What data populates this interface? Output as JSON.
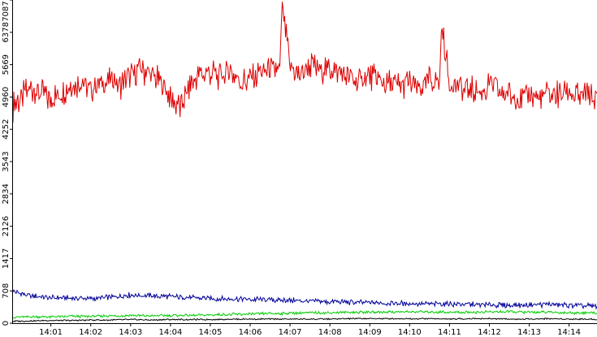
{
  "chart_data": {
    "type": "line",
    "title": "",
    "xlabel": "",
    "ylabel": "",
    "ylim": [
      0,
      7087
    ],
    "y_ticks": [
      0,
      708,
      1417,
      2126,
      2834,
      3543,
      4252,
      4960,
      5669,
      6378,
      7087
    ],
    "y_tick_labels": [
      "0",
      "708",
      "1417",
      "2126",
      "2834",
      "3543",
      "4252",
      "4960",
      "5669",
      "6378",
      "7087"
    ],
    "x_ticks": [
      1,
      2,
      3,
      4,
      5,
      6,
      7,
      8,
      9,
      10,
      11,
      12,
      13,
      14
    ],
    "x_tick_labels": [
      "14:01",
      "14:02",
      "14:03",
      "14:04",
      "14:05",
      "14:06",
      "14:07",
      "14:08",
      "14:09",
      "14:10",
      "14:11",
      "14:12",
      "14:13",
      "14:14"
    ],
    "xlim": [
      0.05,
      14.7
    ],
    "grid": false,
    "legend": "none",
    "series": [
      {
        "color": "#dd0000",
        "x": [
          0.05,
          0.25,
          0.5,
          0.75,
          1.0,
          1.25,
          1.5,
          1.75,
          2.0,
          2.25,
          2.5,
          2.75,
          3.0,
          3.25,
          3.5,
          3.75,
          4.0,
          4.25,
          4.5,
          4.75,
          5.0,
          5.25,
          5.5,
          5.75,
          6.0,
          6.25,
          6.5,
          6.75,
          6.8,
          7.0,
          7.25,
          7.5,
          7.75,
          8.0,
          8.25,
          8.5,
          8.75,
          9.0,
          9.25,
          9.5,
          9.75,
          10.0,
          10.25,
          10.5,
          10.75,
          10.8,
          11.0,
          11.25,
          11.5,
          11.75,
          12.0,
          12.25,
          12.5,
          12.75,
          13.0,
          13.25,
          13.5,
          13.75,
          14.0,
          14.25,
          14.5,
          14.7
        ],
        "values": [
          4750,
          4950,
          5150,
          5050,
          4900,
          5050,
          5200,
          5300,
          5150,
          5250,
          5350,
          5200,
          5450,
          5550,
          5450,
          5300,
          4950,
          4700,
          5250,
          5450,
          5500,
          5400,
          5550,
          5300,
          5350,
          5500,
          5600,
          5550,
          7087,
          5600,
          5450,
          5650,
          5550,
          5600,
          5500,
          5400,
          5300,
          5450,
          5300,
          5250,
          5200,
          5300,
          5150,
          5350,
          5300,
          6550,
          5250,
          5150,
          5100,
          5050,
          5200,
          5050,
          5050,
          4900,
          5050,
          4900,
          5050,
          5000,
          5100,
          4950,
          5000,
          4850
        ]
      },
      {
        "color": "#000099",
        "x": [
          0.05,
          0.5,
          1.0,
          1.5,
          2.0,
          2.5,
          3.0,
          3.5,
          4.0,
          4.5,
          5.0,
          5.5,
          6.0,
          6.5,
          7.0,
          7.5,
          8.0,
          8.5,
          9.0,
          9.5,
          10.0,
          10.5,
          11.0,
          11.5,
          12.0,
          12.5,
          13.0,
          13.5,
          14.0,
          14.5,
          14.7
        ],
        "values": [
          690,
          600,
          560,
          550,
          540,
          570,
          620,
          600,
          580,
          560,
          540,
          530,
          520,
          510,
          500,
          480,
          470,
          460,
          450,
          440,
          430,
          420,
          420,
          410,
          400,
          390,
          400,
          420,
          390,
          380,
          370
        ]
      },
      {
        "color": "#00cc00",
        "x": [
          0.05,
          0.5,
          1.0,
          1.5,
          2.0,
          2.5,
          3.0,
          3.5,
          4.0,
          4.5,
          5.0,
          5.5,
          6.0,
          6.5,
          7.0,
          7.5,
          8.0,
          8.5,
          9.0,
          9.5,
          10.0,
          10.5,
          11.0,
          11.5,
          12.0,
          12.5,
          13.0,
          13.5,
          14.0,
          14.5,
          14.7
        ],
        "values": [
          130,
          140,
          140,
          150,
          150,
          160,
          170,
          160,
          170,
          170,
          180,
          190,
          200,
          210,
          220,
          230,
          230,
          240,
          240,
          250,
          250,
          250,
          240,
          240,
          250,
          250,
          240,
          240,
          230,
          230,
          220
        ]
      },
      {
        "color": "#000000",
        "x": [
          0.05,
          0.5,
          1.0,
          1.5,
          2.0,
          2.5,
          3.0,
          3.5,
          4.0,
          4.5,
          5.0,
          5.5,
          6.0,
          6.5,
          7.0,
          7.5,
          8.0,
          8.5,
          9.0,
          9.5,
          10.0,
          10.5,
          11.0,
          11.5,
          12.0,
          12.5,
          13.0,
          13.5,
          14.0,
          14.5,
          14.7
        ],
        "values": [
          40,
          50,
          60,
          60,
          70,
          70,
          80,
          70,
          80,
          80,
          80,
          90,
          90,
          90,
          90,
          90,
          90,
          100,
          100,
          100,
          100,
          100,
          90,
          100,
          100,
          90,
          90,
          100,
          90,
          90,
          80
        ]
      }
    ]
  }
}
